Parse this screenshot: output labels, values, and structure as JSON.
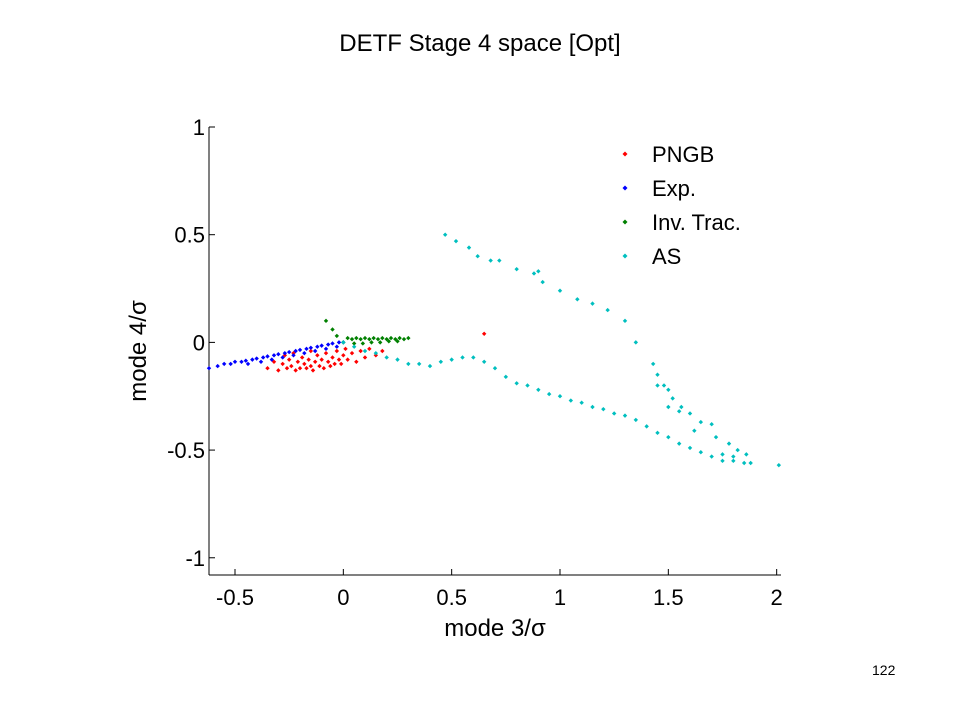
{
  "slide": {
    "title": "DETF Stage 4 space [Opt]",
    "page_number": "122"
  },
  "chart_data": {
    "type": "scatter",
    "xlabel": "mode 3/σ",
    "ylabel": "mode 4/σ",
    "xlim": [
      -0.62,
      2.02
    ],
    "ylim": [
      -1.08,
      1.0
    ],
    "xticks": [
      -0.5,
      0,
      0.5,
      1,
      1.5,
      2
    ],
    "xtick_labels": [
      "-0.5",
      "0",
      "0.5",
      "1",
      "1.5",
      "2"
    ],
    "yticks": [
      1,
      0.5,
      0,
      -0.5,
      -1
    ],
    "ytick_labels": [
      "1",
      "0.5",
      "0",
      "-0.5",
      "-1"
    ],
    "grid": false,
    "legend_position": "top-right",
    "series": [
      {
        "name": "PNGB",
        "color": "#ff0000",
        "points": [
          [
            -0.35,
            -0.12
          ],
          [
            -0.32,
            -0.09
          ],
          [
            -0.3,
            -0.13
          ],
          [
            -0.28,
            -0.1
          ],
          [
            -0.26,
            -0.12
          ],
          [
            -0.25,
            -0.08
          ],
          [
            -0.24,
            -0.11
          ],
          [
            -0.22,
            -0.13
          ],
          [
            -0.21,
            -0.09
          ],
          [
            -0.2,
            -0.12
          ],
          [
            -0.19,
            -0.07
          ],
          [
            -0.18,
            -0.1
          ],
          [
            -0.17,
            -0.12
          ],
          [
            -0.16,
            -0.08
          ],
          [
            -0.15,
            -0.11
          ],
          [
            -0.14,
            -0.13
          ],
          [
            -0.13,
            -0.09
          ],
          [
            -0.12,
            -0.06
          ],
          [
            -0.11,
            -0.11
          ],
          [
            -0.1,
            -0.08
          ],
          [
            -0.09,
            -0.12
          ],
          [
            -0.08,
            -0.05
          ],
          [
            -0.07,
            -0.09
          ],
          [
            -0.06,
            -0.11
          ],
          [
            -0.05,
            -0.07
          ],
          [
            -0.04,
            -0.1
          ],
          [
            -0.03,
            -0.04
          ],
          [
            -0.02,
            -0.08
          ],
          [
            -0.01,
            -0.1
          ],
          [
            0.0,
            -0.06
          ],
          [
            0.01,
            -0.03
          ],
          [
            0.02,
            -0.08
          ],
          [
            0.04,
            -0.05
          ],
          [
            0.06,
            -0.09
          ],
          [
            0.08,
            -0.04
          ],
          [
            0.1,
            -0.07
          ],
          [
            0.12,
            -0.03
          ],
          [
            0.15,
            -0.06
          ],
          [
            0.18,
            -0.04
          ],
          [
            -0.27,
            -0.06
          ],
          [
            -0.23,
            -0.05
          ],
          [
            -0.15,
            -0.04
          ],
          [
            0.65,
            0.04
          ]
        ]
      },
      {
        "name": "Exp.",
        "color": "#0000ff",
        "points": [
          [
            -0.62,
            -0.12
          ],
          [
            -0.58,
            -0.11
          ],
          [
            -0.55,
            -0.1
          ],
          [
            -0.52,
            -0.1
          ],
          [
            -0.5,
            -0.09
          ],
          [
            -0.47,
            -0.09
          ],
          [
            -0.45,
            -0.085
          ],
          [
            -0.42,
            -0.08
          ],
          [
            -0.4,
            -0.075
          ],
          [
            -0.37,
            -0.07
          ],
          [
            -0.35,
            -0.065
          ],
          [
            -0.32,
            -0.06
          ],
          [
            -0.3,
            -0.055
          ],
          [
            -0.27,
            -0.05
          ],
          [
            -0.25,
            -0.045
          ],
          [
            -0.22,
            -0.04
          ],
          [
            -0.2,
            -0.035
          ],
          [
            -0.17,
            -0.03
          ],
          [
            -0.15,
            -0.025
          ],
          [
            -0.12,
            -0.02
          ],
          [
            -0.1,
            -0.015
          ],
          [
            -0.07,
            -0.01
          ],
          [
            -0.05,
            -0.005
          ],
          [
            -0.02,
            0.0
          ],
          [
            0.0,
            0.0
          ],
          [
            -0.44,
            -0.1
          ],
          [
            -0.38,
            -0.09
          ],
          [
            -0.33,
            -0.08
          ],
          [
            -0.28,
            -0.07
          ],
          [
            -0.23,
            -0.06
          ],
          [
            -0.18,
            -0.05
          ],
          [
            -0.13,
            -0.04
          ],
          [
            -0.08,
            -0.03
          ],
          [
            -0.03,
            -0.02
          ]
        ]
      },
      {
        "name": "Inv. Trac.",
        "color": "#008000",
        "points": [
          [
            -0.08,
            0.1
          ],
          [
            -0.05,
            0.06
          ],
          [
            -0.03,
            0.03
          ],
          [
            0.0,
            0.0
          ],
          [
            0.02,
            0.02
          ],
          [
            0.04,
            0.015
          ],
          [
            0.06,
            0.02
          ],
          [
            0.08,
            0.015
          ],
          [
            0.1,
            0.02
          ],
          [
            0.12,
            0.015
          ],
          [
            0.14,
            0.02
          ],
          [
            0.16,
            0.015
          ],
          [
            0.18,
            0.02
          ],
          [
            0.2,
            0.015
          ],
          [
            0.22,
            0.02
          ],
          [
            0.24,
            0.015
          ],
          [
            0.26,
            0.02
          ],
          [
            0.28,
            0.015
          ],
          [
            0.3,
            0.02
          ],
          [
            0.05,
            -0.005
          ],
          [
            0.09,
            -0.005
          ],
          [
            0.13,
            0.0
          ],
          [
            0.17,
            0.0
          ],
          [
            0.21,
            0.005
          ],
          [
            0.25,
            0.005
          ]
        ]
      },
      {
        "name": "AS",
        "color": "#00bfbf",
        "points": [
          [
            0.0,
            0.0
          ],
          [
            0.05,
            -0.02
          ],
          [
            0.1,
            -0.04
          ],
          [
            0.15,
            -0.05
          ],
          [
            0.2,
            -0.07
          ],
          [
            0.25,
            -0.08
          ],
          [
            0.3,
            -0.1
          ],
          [
            0.35,
            -0.1
          ],
          [
            0.4,
            -0.11
          ],
          [
            0.45,
            -0.09
          ],
          [
            0.5,
            -0.08
          ],
          [
            0.55,
            -0.07
          ],
          [
            0.6,
            -0.07
          ],
          [
            0.65,
            -0.09
          ],
          [
            0.7,
            -0.12
          ],
          [
            0.75,
            -0.16
          ],
          [
            0.8,
            -0.19
          ],
          [
            0.85,
            -0.2
          ],
          [
            0.9,
            -0.22
          ],
          [
            0.95,
            -0.24
          ],
          [
            1.0,
            -0.25
          ],
          [
            1.05,
            -0.27
          ],
          [
            1.1,
            -0.28
          ],
          [
            1.15,
            -0.3
          ],
          [
            1.2,
            -0.31
          ],
          [
            1.25,
            -0.33
          ],
          [
            1.3,
            -0.34
          ],
          [
            1.35,
            -0.36
          ],
          [
            1.4,
            -0.39
          ],
          [
            1.45,
            -0.42
          ],
          [
            1.5,
            -0.44
          ],
          [
            1.55,
            -0.47
          ],
          [
            1.6,
            -0.49
          ],
          [
            1.65,
            -0.51
          ],
          [
            1.7,
            -0.53
          ],
          [
            1.75,
            -0.55
          ],
          [
            1.8,
            -0.55
          ],
          [
            1.85,
            -0.56
          ],
          [
            1.88,
            -0.56
          ],
          [
            0.47,
            0.5
          ],
          [
            0.52,
            0.47
          ],
          [
            0.58,
            0.44
          ],
          [
            0.62,
            0.4
          ],
          [
            0.68,
            0.38
          ],
          [
            0.72,
            0.38
          ],
          [
            0.8,
            0.34
          ],
          [
            0.88,
            0.32
          ],
          [
            0.9,
            0.33
          ],
          [
            0.92,
            0.28
          ],
          [
            1.0,
            0.24
          ],
          [
            1.08,
            0.2
          ],
          [
            1.15,
            0.18
          ],
          [
            1.22,
            0.15
          ],
          [
            1.3,
            0.1
          ],
          [
            1.35,
            0.0
          ],
          [
            1.43,
            -0.1
          ],
          [
            1.45,
            -0.15
          ],
          [
            1.48,
            -0.2
          ],
          [
            1.5,
            -0.22
          ],
          [
            1.52,
            -0.26
          ],
          [
            1.56,
            -0.3
          ],
          [
            1.6,
            -0.33
          ],
          [
            1.65,
            -0.37
          ],
          [
            1.7,
            -0.38
          ],
          [
            1.72,
            -0.44
          ],
          [
            1.78,
            -0.47
          ],
          [
            1.82,
            -0.5
          ],
          [
            1.86,
            -0.52
          ],
          [
            2.01,
            -0.57
          ],
          [
            1.45,
            -0.2
          ],
          [
            1.5,
            -0.3
          ],
          [
            1.55,
            -0.32
          ],
          [
            1.62,
            -0.41
          ],
          [
            1.75,
            -0.52
          ],
          [
            1.8,
            -0.53
          ]
        ]
      }
    ]
  }
}
